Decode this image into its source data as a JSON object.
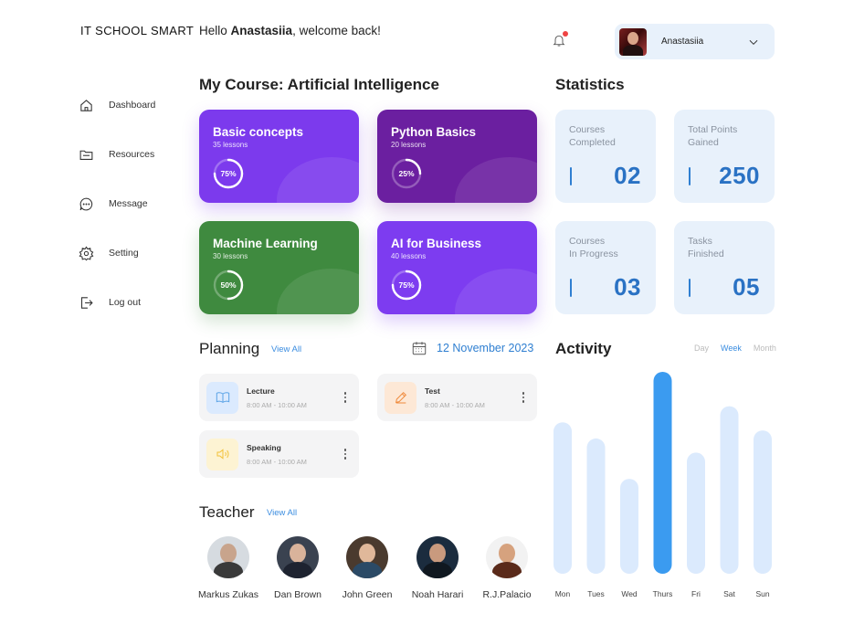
{
  "brand": "IT SCHOOL SMART",
  "header": {
    "greeting_prefix": "Hello ",
    "user_first_name": "Anastasiia",
    "greeting_suffix": ", welcome back!",
    "profile_name": "Anastasiia"
  },
  "sidebar": {
    "items": [
      {
        "label": "Dashboard",
        "icon": "home-icon"
      },
      {
        "label": "Resources",
        "icon": "folder-icon"
      },
      {
        "label": "Message",
        "icon": "chat-icon"
      },
      {
        "label": "Setting",
        "icon": "gear-icon"
      },
      {
        "label": "Log out",
        "icon": "logout-icon"
      }
    ]
  },
  "course_section": {
    "title": "My Course: Artificial Intelligence",
    "courses": [
      {
        "title": "Basic concepts",
        "lessons": "35 lessons",
        "progress_label": "75%",
        "progress": 0.75,
        "color": "#7c3aed"
      },
      {
        "title": "Python Basics",
        "lessons": "20 lessons",
        "progress_label": "25%",
        "progress": 0.25,
        "color": "#6b1fa0"
      },
      {
        "title": "Machine Learning",
        "lessons": "30 lessons",
        "progress_label": "50%",
        "progress": 0.5,
        "color": "#3f8a3f"
      },
      {
        "title": "AI for Business",
        "lessons": "40 lessons",
        "progress_label": "75%",
        "progress": 0.75,
        "color": "#7d3cf0"
      }
    ]
  },
  "statistics": {
    "title": "Statistics",
    "cards": [
      {
        "label_line1": "Courses",
        "label_line2": "Completed",
        "value": "02"
      },
      {
        "label_line1": "Total Points",
        "label_line2": "Gained",
        "value": "250"
      },
      {
        "label_line1": "Courses",
        "label_line2": "In Progress",
        "value": "03"
      },
      {
        "label_line1": "Tasks",
        "label_line2": "Finished",
        "value": "05"
      }
    ]
  },
  "planning": {
    "title": "Planning",
    "view_all": "View All",
    "date": "12 November  2023",
    "items": [
      {
        "title": "Lecture",
        "time": "8:00 AM - 10:00 AM",
        "icon": "book-icon",
        "bg": "#dbeafe",
        "fg": "#5aa3e6"
      },
      {
        "title": "Test",
        "time": "8:00 AM - 10:00 AM",
        "icon": "pencil-icon",
        "bg": "#fde8d6",
        "fg": "#f08a3c"
      },
      {
        "title": "Speaking",
        "time": "8:00 AM - 10:00 AM",
        "icon": "speaker-icon",
        "bg": "#fdf3d3",
        "fg": "#f2c23a"
      }
    ]
  },
  "teachers": {
    "title": "Teacher",
    "view_all": "View All",
    "list": [
      {
        "name": "Markus Zukas"
      },
      {
        "name": "Dan Brown"
      },
      {
        "name": "John Green"
      },
      {
        "name": "Noah Harari"
      },
      {
        "name": "R.J.Palacio"
      }
    ]
  },
  "activity": {
    "title": "Activity",
    "tabs": [
      "Day",
      "Week",
      "Month"
    ],
    "active_tab": "Week",
    "colors": {
      "bar": "#dbeafd",
      "highlight": "#3b9bf0"
    }
  },
  "chart_data": {
    "type": "bar",
    "categories": [
      "Mon",
      "Tues",
      "Wed",
      "Thurs",
      "Fri",
      "Sat",
      "Sun"
    ],
    "values": [
      75,
      67,
      47,
      100,
      60,
      83,
      71
    ],
    "highlight": "Thurs",
    "ylim": [
      0,
      100
    ],
    "grid": false
  }
}
